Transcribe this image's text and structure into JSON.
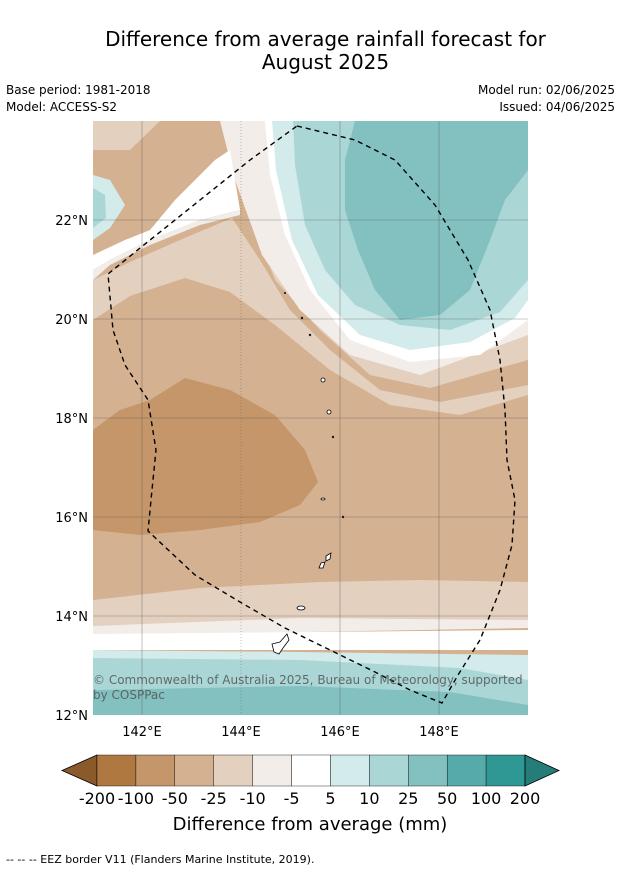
{
  "title_line1": "Difference from average rainfall forecast for",
  "title_line2": "August 2025",
  "base_period": "Base period: 1981-2018",
  "model": "Model: ACCESS-S2",
  "model_run": "Model run: 02/06/2025",
  "issued": "Issued: 04/06/2025",
  "copyright_line1": "© Commonwealth of Australia 2025, Bureau of Meteorology, supported",
  "copyright_line2": "by COSPPac",
  "lat_labels": [
    "22°N",
    "20°N",
    "18°N",
    "16°N",
    "14°N",
    "12°N"
  ],
  "lon_labels": [
    "142°E",
    "144°E",
    "146°E",
    "148°E"
  ],
  "colorbar": {
    "labels": [
      "-200",
      "-100",
      "-50",
      "-25",
      "-10",
      "-5",
      "5",
      "10",
      "25",
      "50",
      "100",
      "200"
    ],
    "colors": [
      "#8b5a2b",
      "#b07841",
      "#c4966a",
      "#d4b191",
      "#e4d0bf",
      "#f2ede8",
      "#ffffff",
      "#d3ebea",
      "#aad7d6",
      "#82c1c0",
      "#57aaaa",
      "#2f9794",
      "#267c79"
    ],
    "title": "Difference from average (mm)"
  },
  "legend_note": "--  --  -- EEZ border V11 (Flanders Marine Institute, 2019)."
}
